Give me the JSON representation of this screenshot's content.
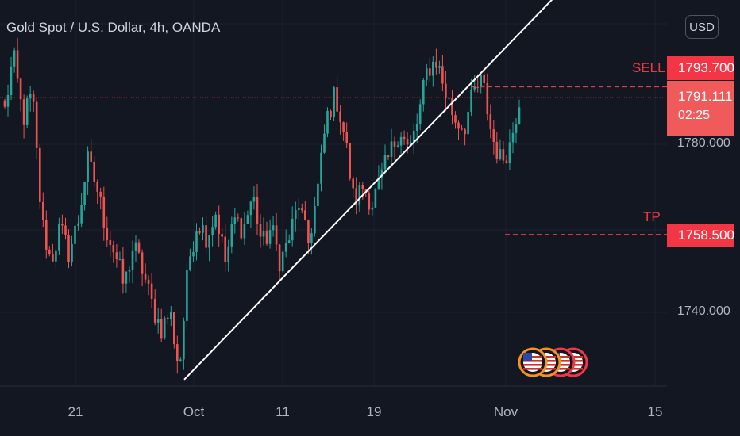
{
  "header": {
    "title": "Gold Spot / U.S. Dollar, 4h, OANDA",
    "currency_button": "USD"
  },
  "colors": {
    "background": "#131722",
    "up": "#26a69a",
    "down": "#ef5350",
    "accent": "#f23645",
    "trendline": "#ffffff",
    "grid": "#1e222d"
  },
  "icons": [
    "us-flag-event-icon",
    "us-flag-event-icon",
    "us-flag-event-icon",
    "us-flag-event-icon"
  ],
  "chart_data": {
    "type": "candlestick",
    "title": "Gold Spot / U.S. Dollar, 4h, OANDA",
    "ylim": [
      1722,
      1805
    ],
    "y_ticks": [
      1740,
      1780
    ],
    "y_tick_labels": [
      "1740.000",
      "1780.000"
    ],
    "x_ticks": [
      "21",
      "Oct",
      "11",
      "19",
      "Nov",
      "15"
    ],
    "grid": true,
    "current_price": 1791.111,
    "current_price_label": "1791.111",
    "countdown": "02:25",
    "levels": [
      {
        "name": "SELL",
        "price": 1793.7,
        "label": "1793.700"
      },
      {
        "name": "TP",
        "price": 1758.5,
        "label": "1758.500"
      }
    ],
    "segments": [
      [
        1788,
        1802
      ],
      [
        1800,
        1786
      ],
      [
        1786,
        1792
      ],
      [
        1792,
        1762
      ],
      [
        1762,
        1752
      ],
      [
        1752,
        1760
      ],
      [
        1760,
        1754
      ],
      [
        1754,
        1762
      ],
      [
        1762,
        1776
      ],
      [
        1776,
        1770
      ],
      [
        1770,
        1760
      ],
      [
        1760,
        1754
      ],
      [
        1754,
        1746
      ],
      [
        1746,
        1756
      ],
      [
        1756,
        1750
      ],
      [
        1750,
        1742
      ],
      [
        1742,
        1736
      ],
      [
        1736,
        1740
      ],
      [
        1740,
        1726
      ],
      [
        1726,
        1752
      ],
      [
        1752,
        1762
      ],
      [
        1762,
        1758
      ],
      [
        1758,
        1764
      ],
      [
        1764,
        1752
      ],
      [
        1752,
        1762
      ],
      [
        1762,
        1760
      ],
      [
        1760,
        1768
      ],
      [
        1768,
        1756
      ],
      [
        1756,
        1760
      ],
      [
        1760,
        1752
      ],
      [
        1752,
        1758
      ],
      [
        1758,
        1766
      ],
      [
        1766,
        1756
      ],
      [
        1756,
        1768
      ],
      [
        1768,
        1786
      ],
      [
        1786,
        1792
      ],
      [
        1792,
        1782
      ],
      [
        1782,
        1766
      ],
      [
        1766,
        1770
      ],
      [
        1770,
        1766
      ],
      [
        1766,
        1772
      ],
      [
        1772,
        1778
      ],
      [
        1778,
        1784
      ],
      [
        1784,
        1778
      ],
      [
        1778,
        1786
      ],
      [
        1786,
        1798
      ],
      [
        1798,
        1800
      ],
      [
        1800,
        1792
      ],
      [
        1792,
        1786
      ],
      [
        1786,
        1784
      ],
      [
        1784,
        1792
      ],
      [
        1792,
        1795
      ],
      [
        1795,
        1782
      ],
      [
        1782,
        1776
      ],
      [
        1776,
        1780
      ],
      [
        1780,
        1791
      ]
    ],
    "trendline": {
      "start_price": 1724,
      "end_price": 1830
    }
  }
}
